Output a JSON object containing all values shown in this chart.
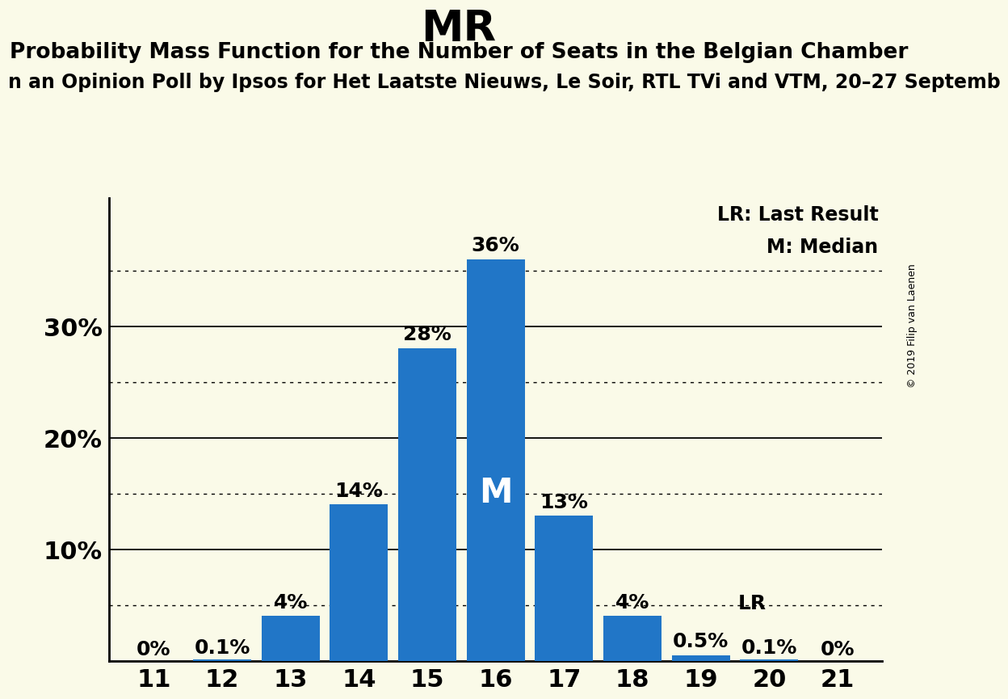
{
  "title": "MR",
  "subtitle": "Probability Mass Function for the Number of Seats in the Belgian Chamber",
  "subtitle2": "n an Opinion Poll by Ipsos for Het Laatste Nieuws, Le Soir, RTL TVi and VTM, 20–27 Septemb",
  "copyright": "© 2019 Filip van Laenen",
  "categories": [
    11,
    12,
    13,
    14,
    15,
    16,
    17,
    18,
    19,
    20,
    21
  ],
  "values": [
    0.0,
    0.001,
    0.04,
    0.14,
    0.28,
    0.36,
    0.13,
    0.04,
    0.005,
    0.001,
    0.0
  ],
  "bar_labels": [
    "0%",
    "0.1%",
    "4%",
    "14%",
    "28%",
    "36%",
    "13%",
    "4%",
    "0.5%",
    "0.1%",
    "0%"
  ],
  "bar_color": "#2176c7",
  "background_color": "#fafae8",
  "median_seat": 16,
  "median_label": "M",
  "lr_seat": 19,
  "lr_label": "LR",
  "legend_lr": "LR: Last Result",
  "legend_m": "M: Median",
  "yticks": [
    0.1,
    0.2,
    0.3
  ],
  "ytick_labels": [
    "10%",
    "20%",
    "30%"
  ],
  "dotted_lines": [
    0.05,
    0.15,
    0.25,
    0.35
  ],
  "ylim": [
    0,
    0.415
  ],
  "title_fontsize": 38,
  "subtitle_fontsize": 19,
  "subtitle2_fontsize": 17,
  "bar_label_fontsize": 18,
  "ytick_fontsize": 22,
  "xtick_fontsize": 22,
  "legend_fontsize": 17
}
